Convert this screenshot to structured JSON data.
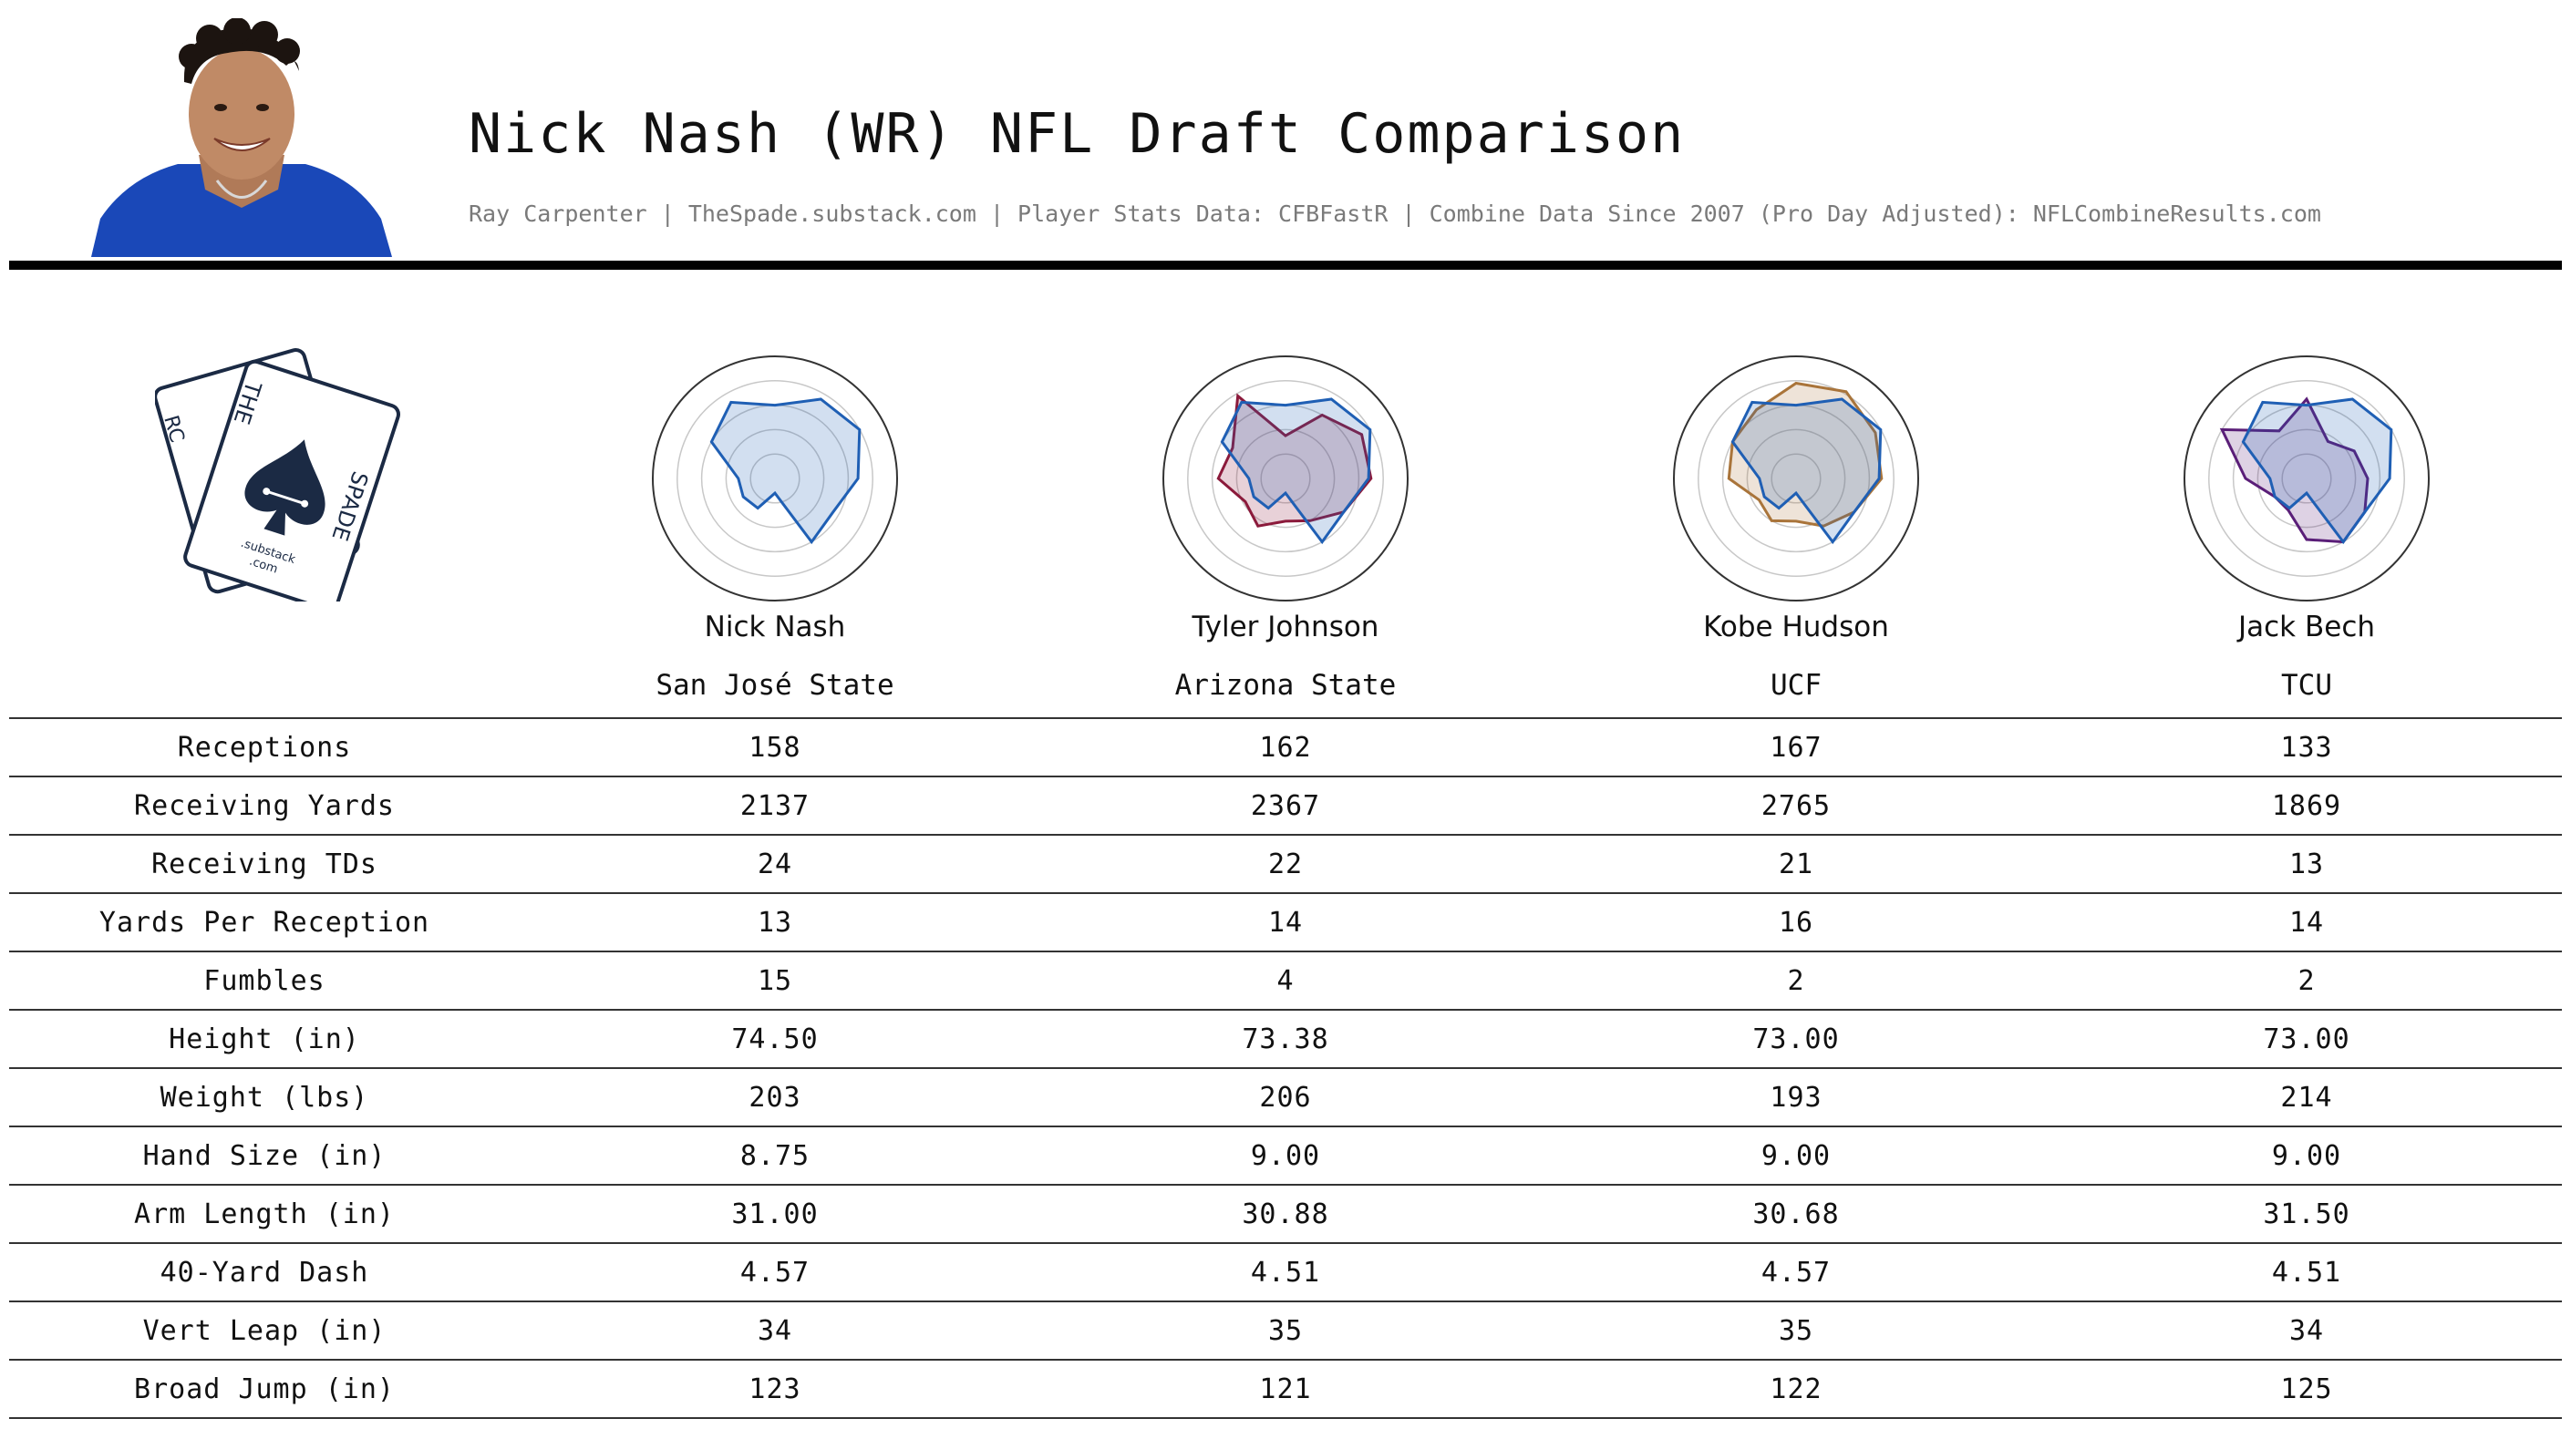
{
  "header": {
    "title": "Nick Nash (WR) NFL Draft Comparison",
    "subtitle": "Ray Carpenter | TheSpade.substack.com | Player Stats Data: CFBFastR | Combine Data Since 2007 (Pro Day Adjusted): NFLCombineResults.com"
  },
  "logo": {
    "letters_left": "RC",
    "letters_mid": "THE",
    "letters_right": "SPADE",
    "small_text": ".substack",
    "small_text2": ".com"
  },
  "players": [
    {
      "name": "Nick Nash",
      "school": "San José State",
      "color": "#1f5fb4"
    },
    {
      "name": "Tyler Johnson",
      "school": "Arizona State",
      "color": "#8b1a3b"
    },
    {
      "name": "Kobe Hudson",
      "school": "UCF",
      "color": "#a9743a"
    },
    {
      "name": "Jack Bech",
      "school": "TCU",
      "color": "#5a1e78"
    }
  ],
  "stats": {
    "rows": [
      {
        "label": "Receptions",
        "values": [
          "158",
          "162",
          "167",
          "133"
        ]
      },
      {
        "label": "Receiving Yards",
        "values": [
          "2137",
          "2367",
          "2765",
          "1869"
        ]
      },
      {
        "label": "Receiving TDs",
        "values": [
          "24",
          "22",
          "21",
          "13"
        ]
      },
      {
        "label": "Yards Per Reception",
        "values": [
          "13",
          "14",
          "16",
          "14"
        ]
      },
      {
        "label": "Fumbles",
        "values": [
          "15",
          "4",
          "2",
          "2"
        ]
      },
      {
        "label": "Height (in)",
        "values": [
          "74.50",
          "73.38",
          "73.00",
          "73.00"
        ]
      },
      {
        "label": "Weight (lbs)",
        "values": [
          "203",
          "206",
          "193",
          "214"
        ]
      },
      {
        "label": "Hand Size (in)",
        "values": [
          "8.75",
          "9.00",
          "9.00",
          "9.00"
        ]
      },
      {
        "label": "Arm Length (in)",
        "values": [
          "31.00",
          "30.88",
          "30.68",
          "31.50"
        ]
      },
      {
        "label": "40-Yard Dash",
        "values": [
          "4.57",
          "4.51",
          "4.57",
          "4.51"
        ]
      },
      {
        "label": "Vert Leap (in)",
        "values": [
          "34",
          "35",
          "35",
          "34"
        ]
      },
      {
        "label": "Broad Jump (in)",
        "values": [
          "123",
          "121",
          "122",
          "125"
        ]
      }
    ]
  },
  "chart_data": {
    "type": "radar",
    "axes_count": 12,
    "radial_range": [
      0,
      1
    ],
    "grid": true,
    "base_series": {
      "name": "Nick Nash",
      "color": "#1f5fb4",
      "values": [
        0.6,
        0.75,
        0.8,
        0.68,
        0.55,
        0.6,
        0.12,
        0.28,
        0.3,
        0.3,
        0.6,
        0.72
      ]
    },
    "series": [
      {
        "name": "Nick Nash",
        "color": "#1f5fb4",
        "values": [
          0.6,
          0.75,
          0.8,
          0.68,
          0.55,
          0.6,
          0.12,
          0.28,
          0.3,
          0.3,
          0.6,
          0.72
        ]
      },
      {
        "name": "Tyler Johnson",
        "color": "#8b1a3b",
        "values": [
          0.35,
          0.6,
          0.72,
          0.7,
          0.55,
          0.4,
          0.35,
          0.45,
          0.38,
          0.55,
          0.5,
          0.78
        ]
      },
      {
        "name": "Kobe Hudson",
        "color": "#a9743a",
        "values": [
          0.78,
          0.82,
          0.75,
          0.7,
          0.55,
          0.45,
          0.35,
          0.4,
          0.35,
          0.55,
          0.6,
          0.65
        ]
      },
      {
        "name": "Jack Bech",
        "color": "#5a1e78",
        "values": [
          0.65,
          0.35,
          0.45,
          0.5,
          0.55,
          0.6,
          0.5,
          0.3,
          0.3,
          0.5,
          0.8,
          0.45
        ]
      }
    ]
  }
}
